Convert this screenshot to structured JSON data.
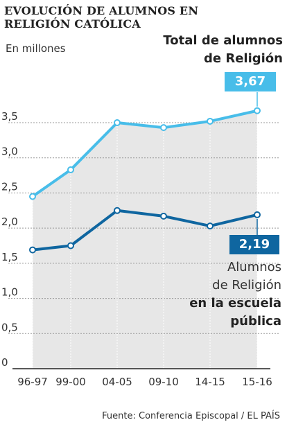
{
  "header": {
    "title": "EVOLUCIÓN DE ALUMNOS EN RELIGIÓN CATÓLICA",
    "subtitle": "En millones"
  },
  "labels": {
    "total_line1": "Total de alumnos",
    "total_line2": "de Religión",
    "total_value": "3,67",
    "public_value": "2,19",
    "public_line1": "Alumnos",
    "public_line2": "de Religión",
    "public_line3": "en la escuela",
    "public_line4": "pública"
  },
  "source": "Fuente: Conferencia Episcopal  / EL PAÍS",
  "colors": {
    "total": "#48bde9",
    "public": "#0f66a0",
    "area": "#e7e7e7",
    "grid": "#999999"
  },
  "chart_data": {
    "type": "line",
    "title": "EVOLUCIÓN DE ALUMNOS EN RELIGIÓN CATÓLICA",
    "ylabel": "En millones",
    "categories": [
      "96-97",
      "99-00",
      "04-05",
      "09-10",
      "14-15",
      "15-16"
    ],
    "yticks": [
      "0",
      "0,5",
      "1,0",
      "1,5",
      "2,0",
      "2,5",
      "3,0",
      "3,5"
    ],
    "ylim": [
      0,
      3.5
    ],
    "grid": true,
    "series": [
      {
        "name": "Total de alumnos de Religión",
        "color": "#48bde9",
        "values": [
          2.45,
          2.83,
          3.5,
          3.43,
          3.52,
          3.67
        ]
      },
      {
        "name": "Alumnos de Religión en la escuela pública",
        "color": "#0f66a0",
        "values": [
          1.69,
          1.75,
          2.25,
          2.17,
          2.03,
          2.19
        ]
      }
    ]
  }
}
